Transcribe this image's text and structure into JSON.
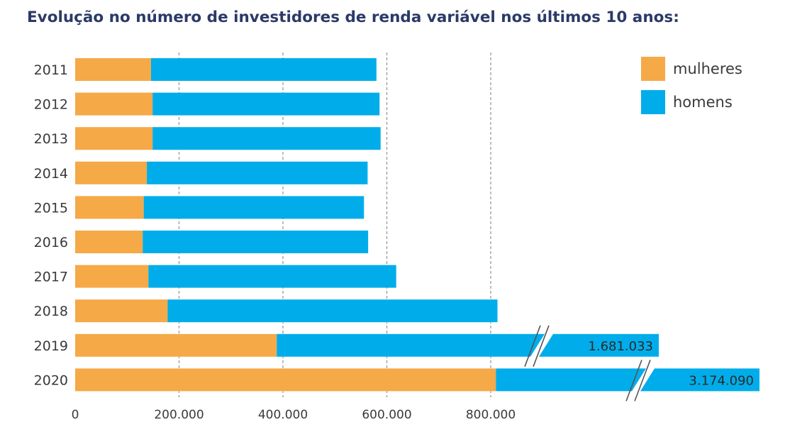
{
  "colors": {
    "mulheres": "#F5A947",
    "homens": "#00ADEA",
    "title": "#2B3A67",
    "grid": "#9a9a9a",
    "text": "#3a3a3a"
  },
  "chart_data": {
    "type": "bar",
    "orientation": "horizontal",
    "stacked": true,
    "title": "Evolução no número de investidores de renda variável nos últimos 10 anos:",
    "categories": [
      "2011",
      "2012",
      "2013",
      "2014",
      "2015",
      "2016",
      "2017",
      "2018",
      "2019",
      "2020"
    ],
    "series": [
      {
        "name": "mulheres",
        "values": [
          146000,
          149000,
          149000,
          138000,
          132000,
          130000,
          141000,
          178000,
          388000,
          810000
        ]
      },
      {
        "name": "homens",
        "values": [
          434000,
          437000,
          439000,
          425000,
          424000,
          434000,
          477000,
          635000,
          1293033,
          2364090
        ]
      }
    ],
    "totals_labeled": {
      "2019": "1.681.033",
      "2020": "3.174.090"
    },
    "axis_break": {
      "categories": [
        "2019",
        "2020"
      ],
      "note": "bars for 2019 and 2020 are truncated with a break mark"
    },
    "xlim": [
      0,
      900000
    ],
    "xticks": [
      0,
      200000,
      400000,
      600000,
      800000
    ],
    "xtick_labels": [
      "0",
      "200.000",
      "400.000",
      "600.000",
      "800.000"
    ],
    "xlabel": "",
    "ylabel": "",
    "grid": "vertical dashed lines at 200.000, 400.000, 600.000, 800.000",
    "legend": {
      "placement": "top-right",
      "entries": [
        "mulheres",
        "homens"
      ]
    }
  }
}
